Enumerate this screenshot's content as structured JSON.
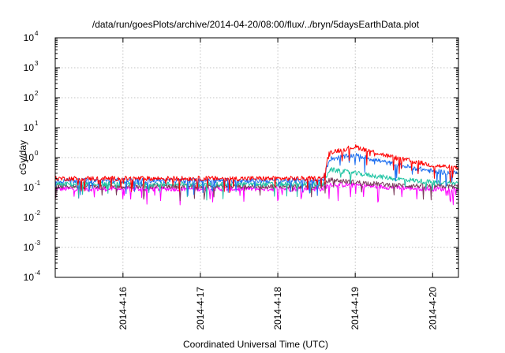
{
  "chart_data": {
    "type": "line",
    "title": "/data/run/goesPlots/archive/2014-04-20/08:00/flux/../bryn/5daysEarthData.plot",
    "xlabel": "Coordinated Universal Time (UTC)",
    "ylabel": "cGy/day",
    "yscale": "log",
    "ylim": [
      0.0001,
      10000
    ],
    "xlim": [
      "2014-04-15 03:00",
      "2014-04-20 08:00"
    ],
    "grid": true,
    "legend": "none",
    "y_ticks": [
      {
        "value": 0.0001,
        "base": "10",
        "exp": "-4"
      },
      {
        "value": 0.001,
        "base": "10",
        "exp": "-3"
      },
      {
        "value": 0.01,
        "base": "10",
        "exp": "-2"
      },
      {
        "value": 0.1,
        "base": "10",
        "exp": "-1"
      },
      {
        "value": 1,
        "base": "10",
        "exp": "0"
      },
      {
        "value": 10,
        "base": "10",
        "exp": "1"
      },
      {
        "value": 100,
        "base": "10",
        "exp": "2"
      },
      {
        "value": 1000,
        "base": "10",
        "exp": "3"
      },
      {
        "value": 10000,
        "base": "10",
        "exp": "4"
      }
    ],
    "x_ticks": [
      {
        "value": "2014-04-16",
        "label": "2014-4-16"
      },
      {
        "value": "2014-04-17",
        "label": "2014-4-17"
      },
      {
        "value": "2014-04-18",
        "label": "2014-4-18"
      },
      {
        "value": "2014-04-19",
        "label": "2014-4-19"
      },
      {
        "value": "2014-04-20",
        "label": "2014-4-20"
      }
    ],
    "series": [
      {
        "color": "#ff00ff",
        "x": [
          "2014-04-15 03:00",
          "2014-04-16 00:00",
          "2014-04-17 00:00",
          "2014-04-18 00:00",
          "2014-04-18 14:00",
          "2014-04-18 16:00",
          "2014-04-19 00:00",
          "2014-04-19 12:00",
          "2014-04-20 00:00",
          "2014-04-20 08:00"
        ],
        "y": [
          0.09,
          0.09,
          0.09,
          0.09,
          0.09,
          0.13,
          0.12,
          0.1,
          0.09,
          0.09
        ]
      },
      {
        "color": "#7a3a5a",
        "x": [
          "2014-04-15 03:00",
          "2014-04-16 00:00",
          "2014-04-17 00:00",
          "2014-04-18 00:00",
          "2014-04-18 14:00",
          "2014-04-18 16:00",
          "2014-04-19 00:00",
          "2014-04-19 12:00",
          "2014-04-20 00:00",
          "2014-04-20 08:00"
        ],
        "y": [
          0.11,
          0.11,
          0.11,
          0.11,
          0.11,
          0.18,
          0.15,
          0.12,
          0.11,
          0.11
        ]
      },
      {
        "color": "#1fc4a3",
        "x": [
          "2014-04-15 03:00",
          "2014-04-16 00:00",
          "2014-04-17 00:00",
          "2014-04-18 00:00",
          "2014-04-18 14:00",
          "2014-04-18 16:00",
          "2014-04-19 00:00",
          "2014-04-19 12:00",
          "2014-04-20 00:00",
          "2014-04-20 08:00"
        ],
        "y": [
          0.13,
          0.13,
          0.13,
          0.13,
          0.13,
          0.4,
          0.3,
          0.2,
          0.15,
          0.14
        ]
      },
      {
        "color": "#1e6ff0",
        "x": [
          "2014-04-15 03:00",
          "2014-04-16 00:00",
          "2014-04-17 00:00",
          "2014-04-18 00:00",
          "2014-04-18 14:00",
          "2014-04-18 16:00",
          "2014-04-19 00:00",
          "2014-04-19 12:00",
          "2014-04-20 00:00",
          "2014-04-20 08:00"
        ],
        "y": [
          0.17,
          0.17,
          0.17,
          0.17,
          0.17,
          0.9,
          1.2,
          0.6,
          0.35,
          0.3
        ]
      },
      {
        "color": "#ff0000",
        "x": [
          "2014-04-15 03:00",
          "2014-04-16 00:00",
          "2014-04-17 00:00",
          "2014-04-18 00:00",
          "2014-04-18 14:00",
          "2014-04-18 16:00",
          "2014-04-19 00:00",
          "2014-04-19 12:00",
          "2014-04-20 00:00",
          "2014-04-20 08:00"
        ],
        "y": [
          0.2,
          0.2,
          0.2,
          0.2,
          0.2,
          1.5,
          2.3,
          1.0,
          0.55,
          0.45
        ]
      }
    ]
  }
}
